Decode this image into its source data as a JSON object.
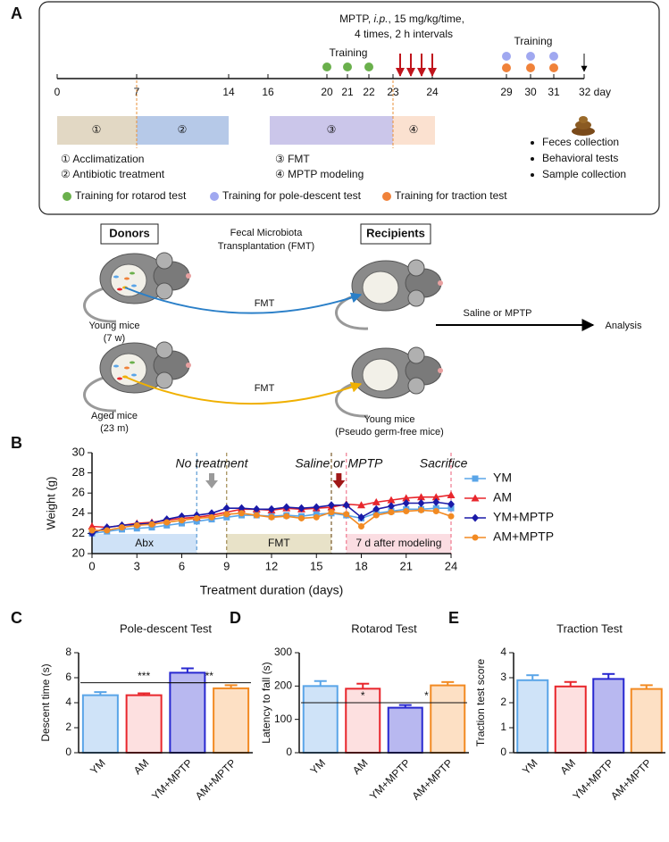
{
  "panel_labels": [
    "A",
    "B",
    "C",
    "D",
    "E"
  ],
  "timeline": {
    "mptp_note": [
      "MPTP, ",
      "i.p.",
      ", 15 mg/kg/time,",
      "4 times,  2 h intervals"
    ],
    "ticks": [
      "0",
      "7",
      "14",
      "16",
      "20",
      "21",
      "22",
      "23",
      "24",
      "29",
      "30",
      "31",
      "32 day"
    ],
    "training": [
      "Training",
      "Training"
    ],
    "phases": [
      "①",
      "②",
      "③",
      "④"
    ],
    "phase_legend": [
      "① Acclimatization",
      "② Antibiotic treatment",
      "③ FMT",
      "④ MPTP modeling"
    ],
    "outcomes": [
      "Feces collection",
      "Behavioral tests",
      "Sample collection"
    ],
    "dot_legend": [
      "Training for rotarod test",
      "Training for pole-descent test",
      "Training for traction test"
    ]
  },
  "diagram": {
    "donors": "Donors",
    "recipients": "Recipients",
    "fmt_title": [
      "Fecal Microbiota",
      "Transplantation (FMT)"
    ],
    "arrow_labels": [
      "FMT",
      "FMT"
    ],
    "donor_labels": [
      [
        "Young mice",
        "(7 w)"
      ],
      [
        "Aged mice",
        "(23 m)"
      ]
    ],
    "recipient_label": [
      "Young mice",
      "(Pseudo germ-free mice)"
    ],
    "treatment": "Saline or MPTP",
    "analysis": "Analysis"
  },
  "chart_data": [
    {
      "type": "line",
      "xlabel": "Treatment duration (days)",
      "ylabel": "Weight (g)",
      "x": [
        0,
        1,
        2,
        3,
        4,
        5,
        6,
        7,
        8,
        9,
        10,
        11,
        12,
        13,
        14,
        15,
        16,
        17,
        18,
        19,
        20,
        21,
        22,
        23,
        24
      ],
      "xlim": [
        0,
        24
      ],
      "xticks": [
        0,
        3,
        6,
        9,
        12,
        15,
        18,
        21,
        24
      ],
      "ylim": [
        20,
        30
      ],
      "yticks": [
        20,
        22,
        24,
        26,
        28,
        30
      ],
      "series": [
        {
          "name": "YM",
          "color": "#5aa5e8",
          "marker": "square",
          "values": [
            22.0,
            22.2,
            22.4,
            22.5,
            22.6,
            22.8,
            23.0,
            23.2,
            23.4,
            23.6,
            23.8,
            23.8,
            23.7,
            23.8,
            23.7,
            23.9,
            24.0,
            23.8,
            23.5,
            24.0,
            24.2,
            24.4,
            24.4,
            24.5,
            24.5
          ]
        },
        {
          "name": "AM",
          "color": "#e8262c",
          "marker": "triangle",
          "values": [
            22.7,
            22.6,
            22.8,
            23.0,
            23.1,
            23.3,
            23.5,
            23.6,
            23.8,
            24.1,
            24.4,
            24.4,
            24.3,
            24.5,
            24.4,
            24.5,
            24.6,
            24.9,
            24.8,
            25.1,
            25.3,
            25.5,
            25.6,
            25.6,
            25.8
          ]
        },
        {
          "name": "YM+MPTP",
          "color": "#1a1aa8",
          "marker": "diamond",
          "values": [
            22.0,
            22.6,
            22.8,
            22.9,
            23.0,
            23.4,
            23.7,
            23.8,
            24.0,
            24.5,
            24.5,
            24.4,
            24.4,
            24.6,
            24.5,
            24.6,
            24.8,
            24.8,
            23.6,
            24.4,
            24.7,
            25.0,
            25.0,
            25.1,
            24.9
          ]
        },
        {
          "name": "AM+MPTP",
          "color": "#f28a22",
          "marker": "circle",
          "values": [
            22.3,
            22.3,
            22.6,
            22.8,
            22.9,
            23.1,
            23.3,
            23.5,
            23.6,
            23.9,
            24.0,
            23.8,
            23.6,
            23.7,
            23.5,
            23.6,
            24.1,
            23.9,
            22.7,
            23.8,
            24.1,
            24.2,
            24.3,
            24.2,
            23.7
          ]
        }
      ],
      "regions": [
        {
          "label": "Abx",
          "x": [
            0,
            7
          ],
          "color": "#cfe2f7"
        },
        {
          "label": "FMT",
          "x": [
            9,
            16
          ],
          "color": "#e8e2c8"
        },
        {
          "label": "7 d after modeling",
          "x": [
            17,
            24
          ],
          "color": "#fbdde2"
        }
      ],
      "vlines": [
        {
          "x": 7,
          "color": "#5b9bd5"
        },
        {
          "x": 9,
          "color": "#a08a50"
        },
        {
          "x": 16,
          "color": "#7a5a2a"
        },
        {
          "x": 17,
          "color": "#f07a90"
        },
        {
          "x": 24,
          "color": "#f07a90"
        }
      ],
      "annotations": [
        {
          "text": "No treatment",
          "x": 8,
          "arrow_color": "#9a9a9a"
        },
        {
          "text": "Saline or MPTP",
          "x": 16.5,
          "arrow_color": "#a01818"
        },
        {
          "text": "Sacrifice",
          "x": 23.5
        }
      ]
    },
    {
      "type": "bar",
      "title": "Pole-descent Test",
      "ylabel": "Descent time (s)",
      "categories": [
        "YM",
        "AM",
        "YM+MPTP",
        "AM+MPTP"
      ],
      "values": [
        4.6,
        4.6,
        6.4,
        5.15
      ],
      "errors": [
        0.25,
        0.15,
        0.35,
        0.25
      ],
      "colors": [
        "#5aa5e8",
        "#e8262c",
        "#2828d0",
        "#f28a22"
      ],
      "fill_colors": [
        "#cfe3f8",
        "#fde0e0",
        "#b8b8f0",
        "#fde0c4"
      ],
      "ylim": [
        0,
        8
      ],
      "yticks": [
        0,
        2,
        4,
        6,
        8
      ],
      "significance": [
        {
          "from": 0,
          "to": 2,
          "label": "***",
          "y": 5.6
        },
        {
          "from": 2,
          "to": 3,
          "label": "**",
          "y": 5.6
        }
      ]
    },
    {
      "type": "bar",
      "title": "Rotarod Test",
      "ylabel": "Latency to fall (s)",
      "categories": [
        "YM",
        "AM",
        "YM+MPTP",
        "AM+MPTP"
      ],
      "values": [
        200,
        192,
        135,
        202
      ],
      "errors": [
        15,
        15,
        8,
        10
      ],
      "colors": [
        "#5aa5e8",
        "#e8262c",
        "#2828d0",
        "#f28a22"
      ],
      "fill_colors": [
        "#cfe3f8",
        "#fde0e0",
        "#b8b8f0",
        "#fde0c4"
      ],
      "ylim": [
        0,
        300
      ],
      "yticks": [
        0,
        100,
        200,
        300
      ],
      "significance": [
        {
          "from": 0,
          "to": 2,
          "label": "*",
          "y": 150
        },
        {
          "from": 2,
          "to": 3,
          "label": "*",
          "y": 150
        }
      ]
    },
    {
      "type": "bar",
      "title": "Traction Test",
      "ylabel": "Traction test score",
      "categories": [
        "YM",
        "AM",
        "YM+MPTP",
        "AM+MPTP"
      ],
      "values": [
        2.9,
        2.65,
        2.95,
        2.55
      ],
      "errors": [
        0.2,
        0.18,
        0.2,
        0.15
      ],
      "colors": [
        "#5aa5e8",
        "#e8262c",
        "#2828d0",
        "#f28a22"
      ],
      "fill_colors": [
        "#cfe3f8",
        "#fde0e0",
        "#b8b8f0",
        "#fde0c4"
      ],
      "ylim": [
        0,
        4
      ],
      "yticks": [
        0,
        1,
        2,
        3,
        4
      ]
    }
  ]
}
